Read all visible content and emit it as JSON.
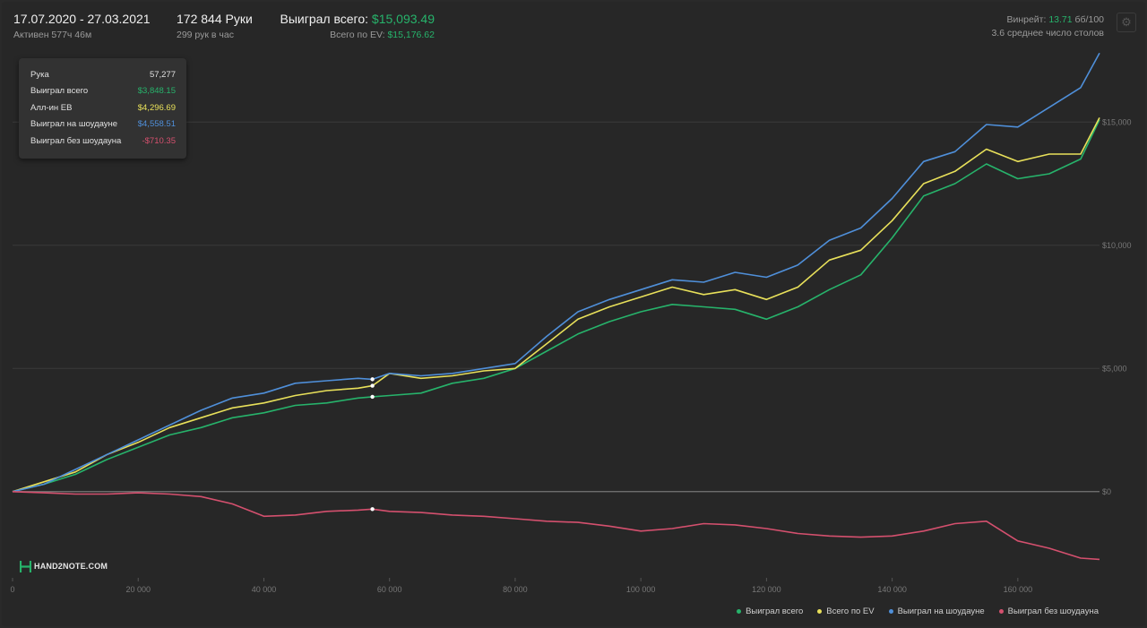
{
  "header": {
    "period": "17.07.2020 - 27.03.2021",
    "active": "Активен 577ч 46м",
    "hands": "172 844 Руки",
    "hands_per_hour": "299 рук в час",
    "won_label": "Выиграл всего:",
    "won_value": "$15,093.49",
    "ev_label": "Всего по EV:",
    "ev_value": "$15,176.62",
    "winrate_label": "Винрейт:",
    "winrate_value": "13.71",
    "winrate_unit": "бб/100",
    "tables": "3.6 среднее число столов"
  },
  "settings_icon": "gear-icon",
  "tooltip": {
    "rows": [
      {
        "label": "Рука",
        "value": "57,277",
        "color": "#e0e0e0"
      },
      {
        "label": "Выиграл всего",
        "value": "$3,848.15",
        "color": "#27b36b"
      },
      {
        "label": "Алл-ин EB",
        "value": "$4,296.69",
        "color": "#e8e05a"
      },
      {
        "label": "Выиграл на шоудауне",
        "value": "$4,558.51",
        "color": "#4f8fd9"
      },
      {
        "label": "Выиграл без шоудауна",
        "value": "-$710.35",
        "color": "#d4506e"
      }
    ]
  },
  "logo": {
    "brand": "HAND2NOTE.COM",
    "icon": "h2n-logo-icon"
  },
  "colors": {
    "won": "#27b36b",
    "ev": "#e8e05a",
    "showdown": "#4f8fd9",
    "nonshowdown": "#d4506e",
    "grid": "#3a3a3a",
    "zero": "#777777"
  },
  "chart_data": {
    "type": "line",
    "xlabel": "",
    "ylabel": "",
    "x_ticks": [
      "0",
      "20 000",
      "40 000",
      "60 000",
      "80 000",
      "100 000",
      "120 000",
      "140 000",
      "160 000"
    ],
    "y_ticks": [
      "$0",
      "$5,000",
      "$10,000",
      "$15,000"
    ],
    "xlim": [
      0,
      173000
    ],
    "ylim": [
      -3500,
      18500
    ],
    "grid": true,
    "legend_position": "bottom-right",
    "marker_x": 57277,
    "series": [
      {
        "name": "Выиграл всего",
        "color": "#27b36b",
        "x": [
          0,
          5000,
          10000,
          15000,
          20000,
          25000,
          30000,
          35000,
          40000,
          45000,
          50000,
          55000,
          57277,
          60000,
          65000,
          70000,
          75000,
          80000,
          85000,
          90000,
          95000,
          100000,
          105000,
          110000,
          115000,
          120000,
          125000,
          130000,
          135000,
          140000,
          145000,
          150000,
          155000,
          160000,
          165000,
          170000,
          173000
        ],
        "y": [
          0,
          300,
          700,
          1300,
          1800,
          2300,
          2600,
          3000,
          3200,
          3500,
          3600,
          3800,
          3848,
          3900,
          4000,
          4400,
          4600,
          5000,
          5700,
          6400,
          6900,
          7300,
          7600,
          7500,
          7400,
          7000,
          7500,
          8200,
          8800,
          10300,
          12000,
          12500,
          13300,
          12700,
          12900,
          13500,
          15093
        ]
      },
      {
        "name": "Всего по EV",
        "color": "#e8e05a",
        "x": [
          0,
          5000,
          10000,
          15000,
          20000,
          25000,
          30000,
          35000,
          40000,
          45000,
          50000,
          55000,
          57277,
          60000,
          65000,
          70000,
          75000,
          80000,
          85000,
          90000,
          95000,
          100000,
          105000,
          110000,
          115000,
          120000,
          125000,
          130000,
          135000,
          140000,
          145000,
          150000,
          155000,
          160000,
          165000,
          170000,
          173000
        ],
        "y": [
          0,
          400,
          800,
          1500,
          2000,
          2600,
          3000,
          3400,
          3600,
          3900,
          4100,
          4200,
          4297,
          4800,
          4600,
          4700,
          4900,
          5000,
          6000,
          7000,
          7500,
          7900,
          8300,
          8000,
          8200,
          7800,
          8300,
          9400,
          9800,
          11000,
          12500,
          13000,
          13900,
          13400,
          13700,
          13700,
          15177
        ]
      },
      {
        "name": "Выиграл на шоудауне",
        "color": "#4f8fd9",
        "x": [
          0,
          5000,
          10000,
          15000,
          20000,
          25000,
          30000,
          35000,
          40000,
          45000,
          50000,
          55000,
          57277,
          60000,
          65000,
          70000,
          75000,
          80000,
          85000,
          90000,
          95000,
          100000,
          105000,
          110000,
          115000,
          120000,
          125000,
          130000,
          135000,
          140000,
          145000,
          150000,
          155000,
          160000,
          165000,
          170000,
          173000
        ],
        "y": [
          0,
          300,
          900,
          1500,
          2100,
          2700,
          3300,
          3800,
          4000,
          4400,
          4500,
          4600,
          4559,
          4800,
          4700,
          4800,
          5000,
          5200,
          6300,
          7300,
          7800,
          8200,
          8600,
          8500,
          8900,
          8700,
          9200,
          10200,
          10700,
          11900,
          13400,
          13800,
          14900,
          14800,
          15600,
          16400,
          17800
        ]
      },
      {
        "name": "Выиграл без шоудауна",
        "color": "#d4506e",
        "x": [
          0,
          5000,
          10000,
          15000,
          20000,
          25000,
          30000,
          35000,
          40000,
          45000,
          50000,
          55000,
          57277,
          60000,
          65000,
          70000,
          75000,
          80000,
          85000,
          90000,
          95000,
          100000,
          105000,
          110000,
          115000,
          120000,
          125000,
          130000,
          135000,
          140000,
          145000,
          150000,
          155000,
          160000,
          165000,
          170000,
          173000
        ],
        "y": [
          0,
          -50,
          -100,
          -100,
          -50,
          -100,
          -200,
          -500,
          -1000,
          -950,
          -800,
          -750,
          -710,
          -800,
          -850,
          -950,
          -1000,
          -1100,
          -1200,
          -1250,
          -1400,
          -1600,
          -1500,
          -1300,
          -1350,
          -1500,
          -1700,
          -1800,
          -1850,
          -1800,
          -1600,
          -1300,
          -1200,
          -2000,
          -2300,
          -2700,
          -2750
        ]
      }
    ]
  }
}
